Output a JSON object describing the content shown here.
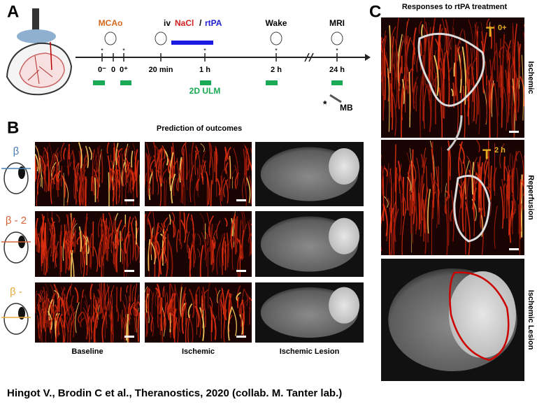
{
  "panel_a": {
    "label": "A",
    "mcao": "MCAo",
    "iv": "iv",
    "nacl": "NaCl",
    "slash": "/",
    "rtpa": "rtPA",
    "wake": "Wake",
    "mri": "MRI",
    "timepoints": [
      "0⁻",
      "0",
      "0⁺",
      "20 min",
      "1 h",
      "2 h",
      "24 h"
    ],
    "ulm": "2D ULM",
    "asterisk": "*",
    "mb": "MB"
  },
  "panel_b": {
    "label": "B",
    "title": "Prediction of outcomes",
    "rows": [
      "β",
      "β - 2",
      "β -"
    ],
    "columns": [
      "Baseline",
      "Ischemic",
      "Ischemic Lesion"
    ]
  },
  "panel_c": {
    "label": "C",
    "title": "Responses to rtPA treatment",
    "t": "T",
    "t1": "0+",
    "t2": "2 h",
    "rows": [
      "Ischemic",
      "Reperfusion",
      "Ischemic Lesion"
    ]
  },
  "footer": "Hingot V., Brodin C et al., Theranostics, 2020 (collab. M. Tanter lab.)"
}
